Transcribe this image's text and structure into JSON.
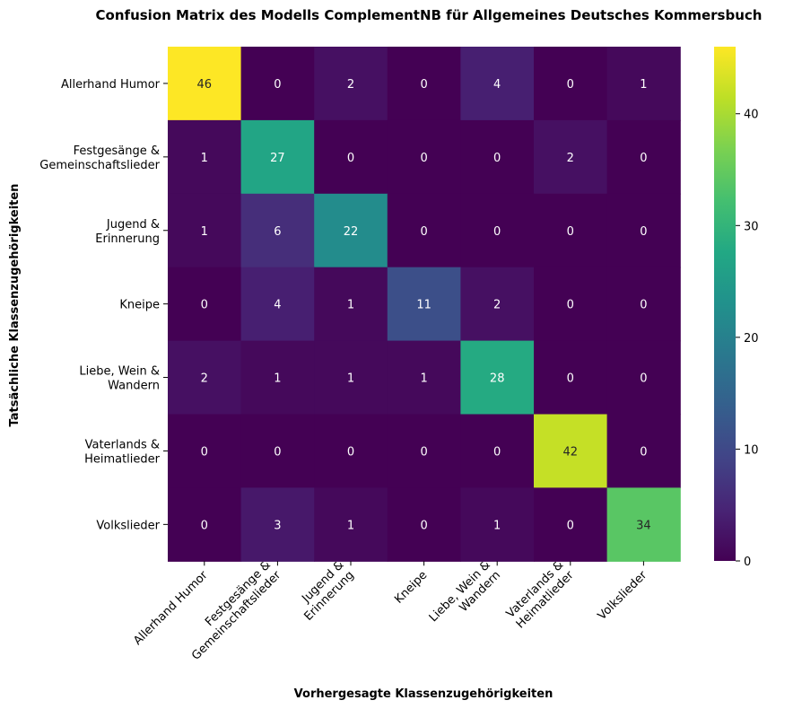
{
  "chart_data": {
    "type": "heatmap",
    "title": "Confusion Matrix des Modells ComplementNB für Allgemeines Deutsches Kommersbuch",
    "xlabel": "Vorhergesagte Klassenzugehörigkeiten",
    "ylabel": "Tatsächliche Klassenzugehörigkeiten",
    "x_categories": [
      [
        "Allerhand Humor"
      ],
      [
        "Festgesänge &",
        "Gemeinschaftslieder"
      ],
      [
        "Jugend &",
        "Erinnerung"
      ],
      [
        "Kneipe"
      ],
      [
        "Liebe, Wein &",
        "Wandern"
      ],
      [
        "Vaterlands &",
        "Heimatlieder"
      ],
      [
        "Volkslieder"
      ]
    ],
    "y_categories": [
      [
        "Allerhand Humor"
      ],
      [
        "Festgesänge &",
        "Gemeinschaftslieder"
      ],
      [
        "Jugend &",
        "Erinnerung"
      ],
      [
        "Kneipe"
      ],
      [
        "Liebe, Wein &",
        "Wandern"
      ],
      [
        "Vaterlands &",
        "Heimatlieder"
      ],
      [
        "Volkslieder"
      ]
    ],
    "values": [
      [
        46,
        0,
        2,
        0,
        4,
        0,
        1
      ],
      [
        1,
        27,
        0,
        0,
        0,
        2,
        0
      ],
      [
        1,
        6,
        22,
        0,
        0,
        0,
        0
      ],
      [
        0,
        4,
        1,
        11,
        2,
        0,
        0
      ],
      [
        2,
        1,
        1,
        1,
        28,
        0,
        0
      ],
      [
        0,
        0,
        0,
        0,
        0,
        42,
        0
      ],
      [
        0,
        3,
        1,
        0,
        1,
        0,
        34
      ]
    ],
    "colormap": "viridis",
    "colorbar": {
      "range": [
        0,
        46
      ],
      "ticks": [
        0,
        10,
        20,
        30,
        40
      ]
    },
    "grid": false
  }
}
